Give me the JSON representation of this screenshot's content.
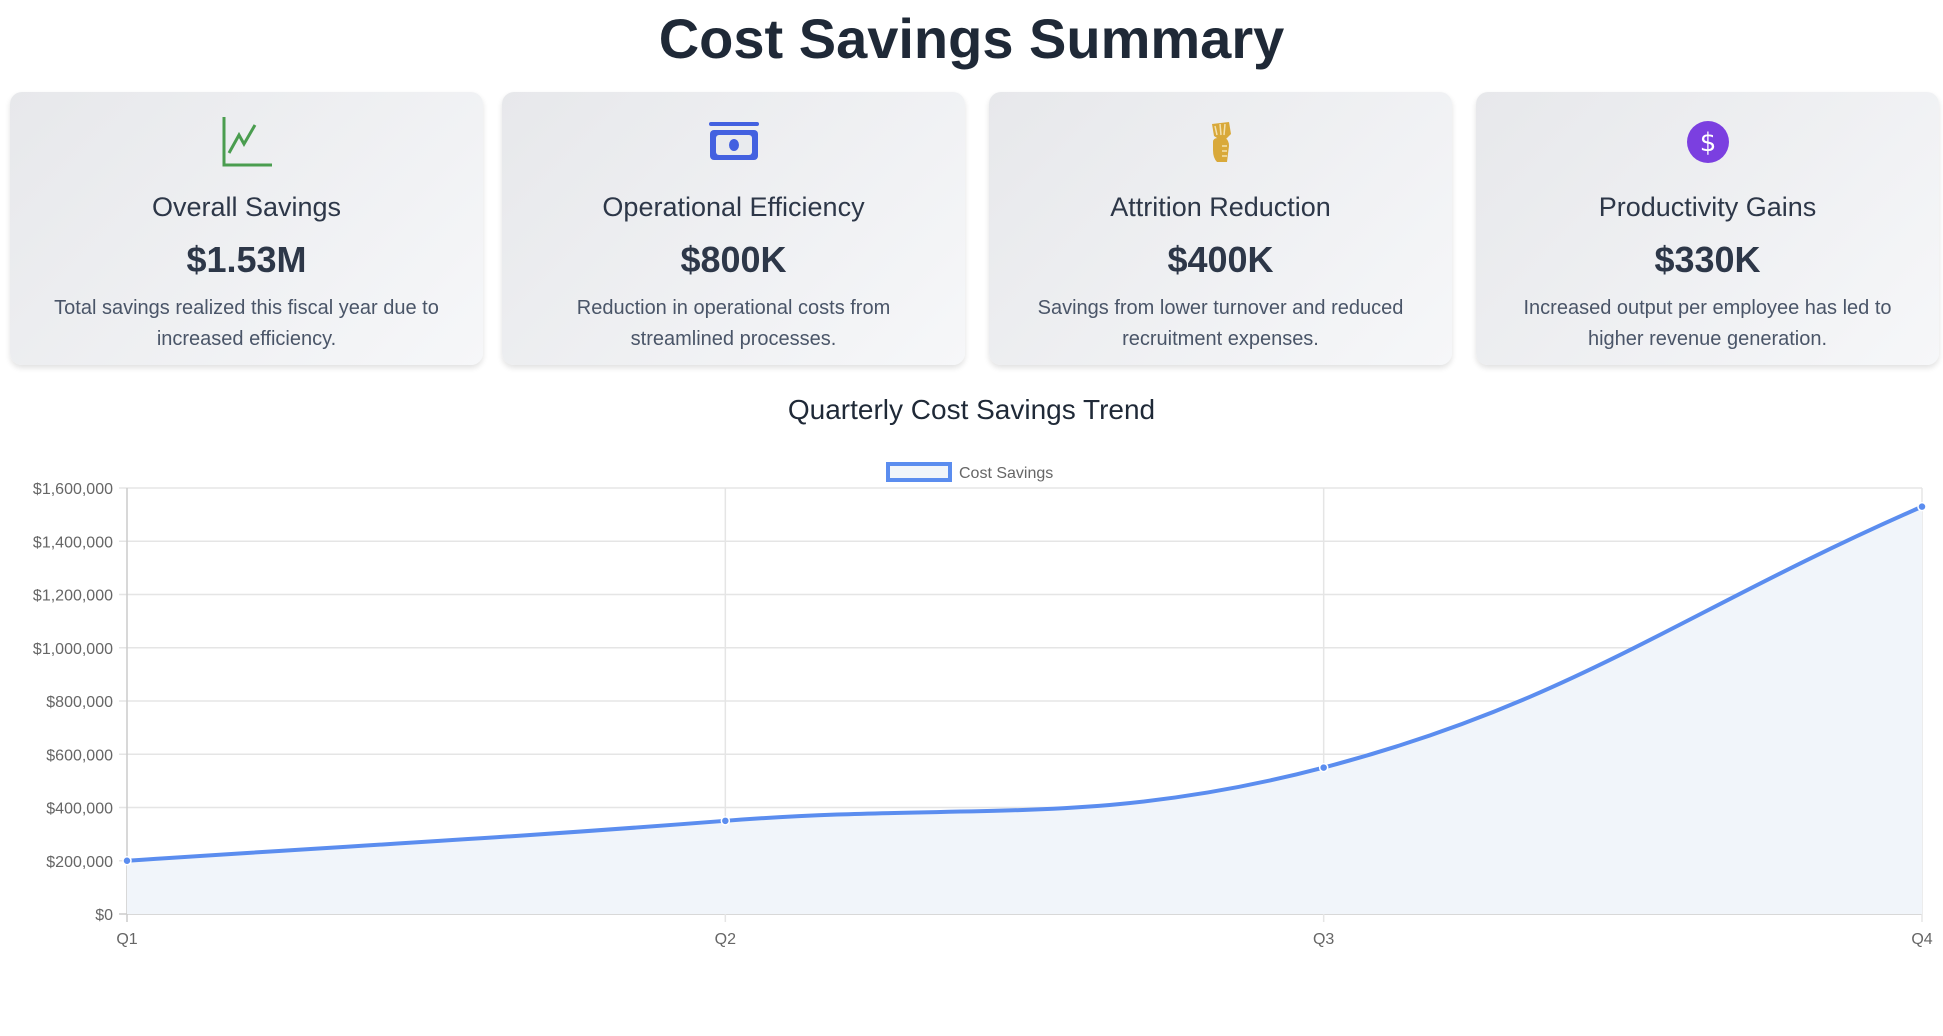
{
  "page_title": "Cost Savings Summary",
  "cards": [
    {
      "icon": "chart-line-icon",
      "color": "#4a9d4f",
      "title": "Overall Savings",
      "value": "$1.53M",
      "description": "Total savings realized this fiscal year due to increased efficiency."
    },
    {
      "icon": "money-bill-icon",
      "color": "#4361e0",
      "title": "Operational Efficiency",
      "value": "$800K",
      "description": "Reduction in operational costs from streamlined processes."
    },
    {
      "icon": "hand-holding-cash-icon",
      "color": "#d9a93a",
      "title": "Attrition Reduction",
      "value": "$400K",
      "description": "Savings from lower turnover and reduced recruitment expenses."
    },
    {
      "icon": "dollar-circle-icon",
      "color": "#7b3fe0",
      "title": "Productivity Gains",
      "value": "$330K",
      "description": "Increased output per employee has led to higher revenue generation."
    }
  ],
  "chart_data": {
    "type": "line",
    "title": "Quarterly Cost Savings Trend",
    "categories": [
      "Q1",
      "Q2",
      "Q3",
      "Q4"
    ],
    "series": [
      {
        "name": "Cost Savings",
        "values": [
          200000,
          350000,
          550000,
          1530000
        ],
        "color": "#5b8def",
        "fill": "#f1f5fa"
      }
    ],
    "ylim": [
      0,
      1600000
    ],
    "yticks": [
      "$0",
      "$200,000",
      "$400,000",
      "$600,000",
      "$800,000",
      "$1,000,000",
      "$1,200,000",
      "$1,400,000",
      "$1,600,000"
    ],
    "grid": true,
    "legend": "top"
  }
}
